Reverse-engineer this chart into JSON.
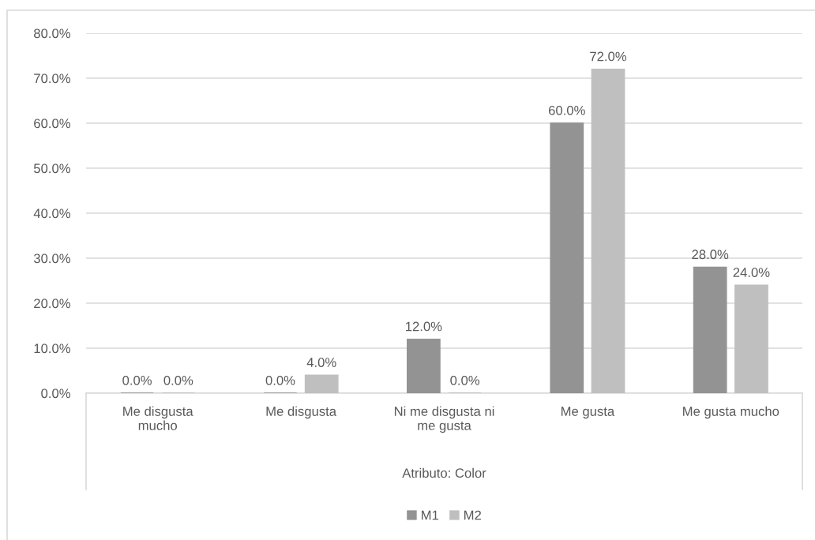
{
  "chart_data": {
    "type": "bar",
    "xlabel": "Atributo: Color",
    "categories": [
      "Me disgusta mucho",
      "Me disgusta",
      "Ni me disgusta ni me gusta",
      "Me gusta",
      "Me gusta mucho"
    ],
    "series": [
      {
        "name": "M1",
        "color": "#939393",
        "values": [
          0,
          0,
          12,
          60,
          28
        ],
        "value_labels": [
          "0.0%",
          "0.0%",
          "12.0%",
          "60.0%",
          "28.0%"
        ]
      },
      {
        "name": "M2",
        "color": "#bfbfbf",
        "values": [
          0,
          4,
          0,
          72,
          24
        ],
        "value_labels": [
          "0.0%",
          "4.0%",
          "0.0%",
          "72.0%",
          "24.0%"
        ]
      }
    ],
    "ylim": [
      0,
      80
    ],
    "yticks": [
      {
        "value": 0,
        "label": "0.0%"
      },
      {
        "value": 10,
        "label": "10.0%"
      },
      {
        "value": 20,
        "label": "20.0%"
      },
      {
        "value": 30,
        "label": "30.0%"
      },
      {
        "value": 40,
        "label": "40.0%"
      },
      {
        "value": 50,
        "label": "50.0%"
      },
      {
        "value": 60,
        "label": "60.0%"
      },
      {
        "value": 70,
        "label": "70.0%"
      },
      {
        "value": 80,
        "label": "80.0%"
      }
    ],
    "grid": "y",
    "legend": "bottom"
  }
}
